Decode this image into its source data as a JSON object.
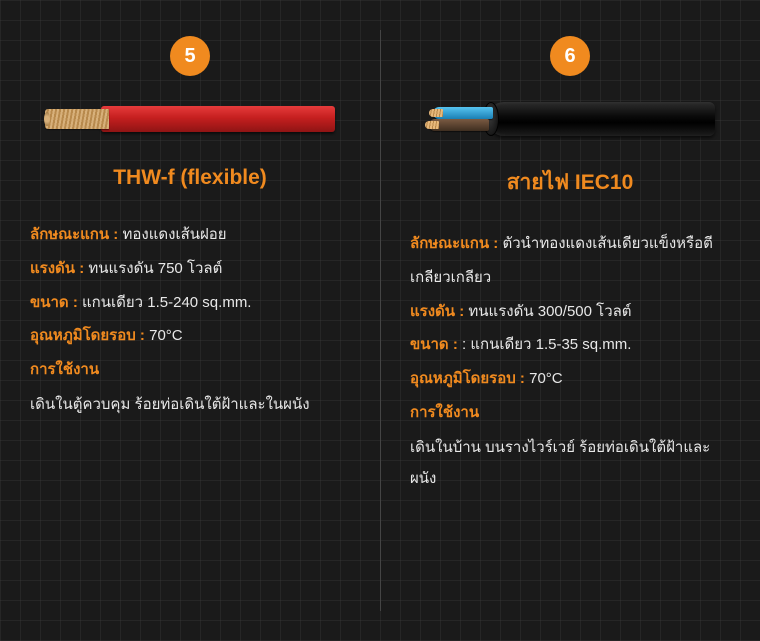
{
  "colors": {
    "accent": "#f08a1f",
    "badge_bg": "#f08a1f",
    "text": "#e8e8e8",
    "background": "#1a1a1a",
    "grid": "rgba(60,60,60,0.35)",
    "divider": "#444444",
    "cable1_insulation": "#c51f1f",
    "cable1_strand": "#d7b07a",
    "cable2_jacket": "#0c0c0c",
    "cable2_core_blue": "#1a7fb5",
    "cable2_core_brown": "#3f2e20"
  },
  "label_keys": {
    "core": "ลักษณะแกน :",
    "voltage": "แรงดัน :",
    "size": "ขนาด :",
    "temp": "อุณหภูมิโดยรอบ :",
    "usage": "การใช้งาน"
  },
  "left": {
    "badge": "5",
    "title": "THW-f (flexible)",
    "core": "ทองแดงเส้นฝอย",
    "voltage": "ทนแรงดัน 750 โวลต์",
    "size": "แกนเดียว 1.5-240 sq.mm.",
    "temp": "70°C",
    "usage": "เดินในตู้ควบคุม ร้อยท่อเดินใต้ฝ้าและในผนัง"
  },
  "right": {
    "badge": "6",
    "title": "สายไฟ IEC10",
    "core": "ตัวนำทองแดงเส้นเดียวแข็งหรือตีเกลียวเกลียว",
    "voltage": "ทนแรงดัน 300/500 โวลต์",
    "size": ": แกนเดียว 1.5-35 sq.mm.",
    "temp": "70°C",
    "usage": "เดินในบ้าน บนรางไวร์เวย์ ร้อยท่อเดินใต้ฝ้าและผนัง"
  }
}
